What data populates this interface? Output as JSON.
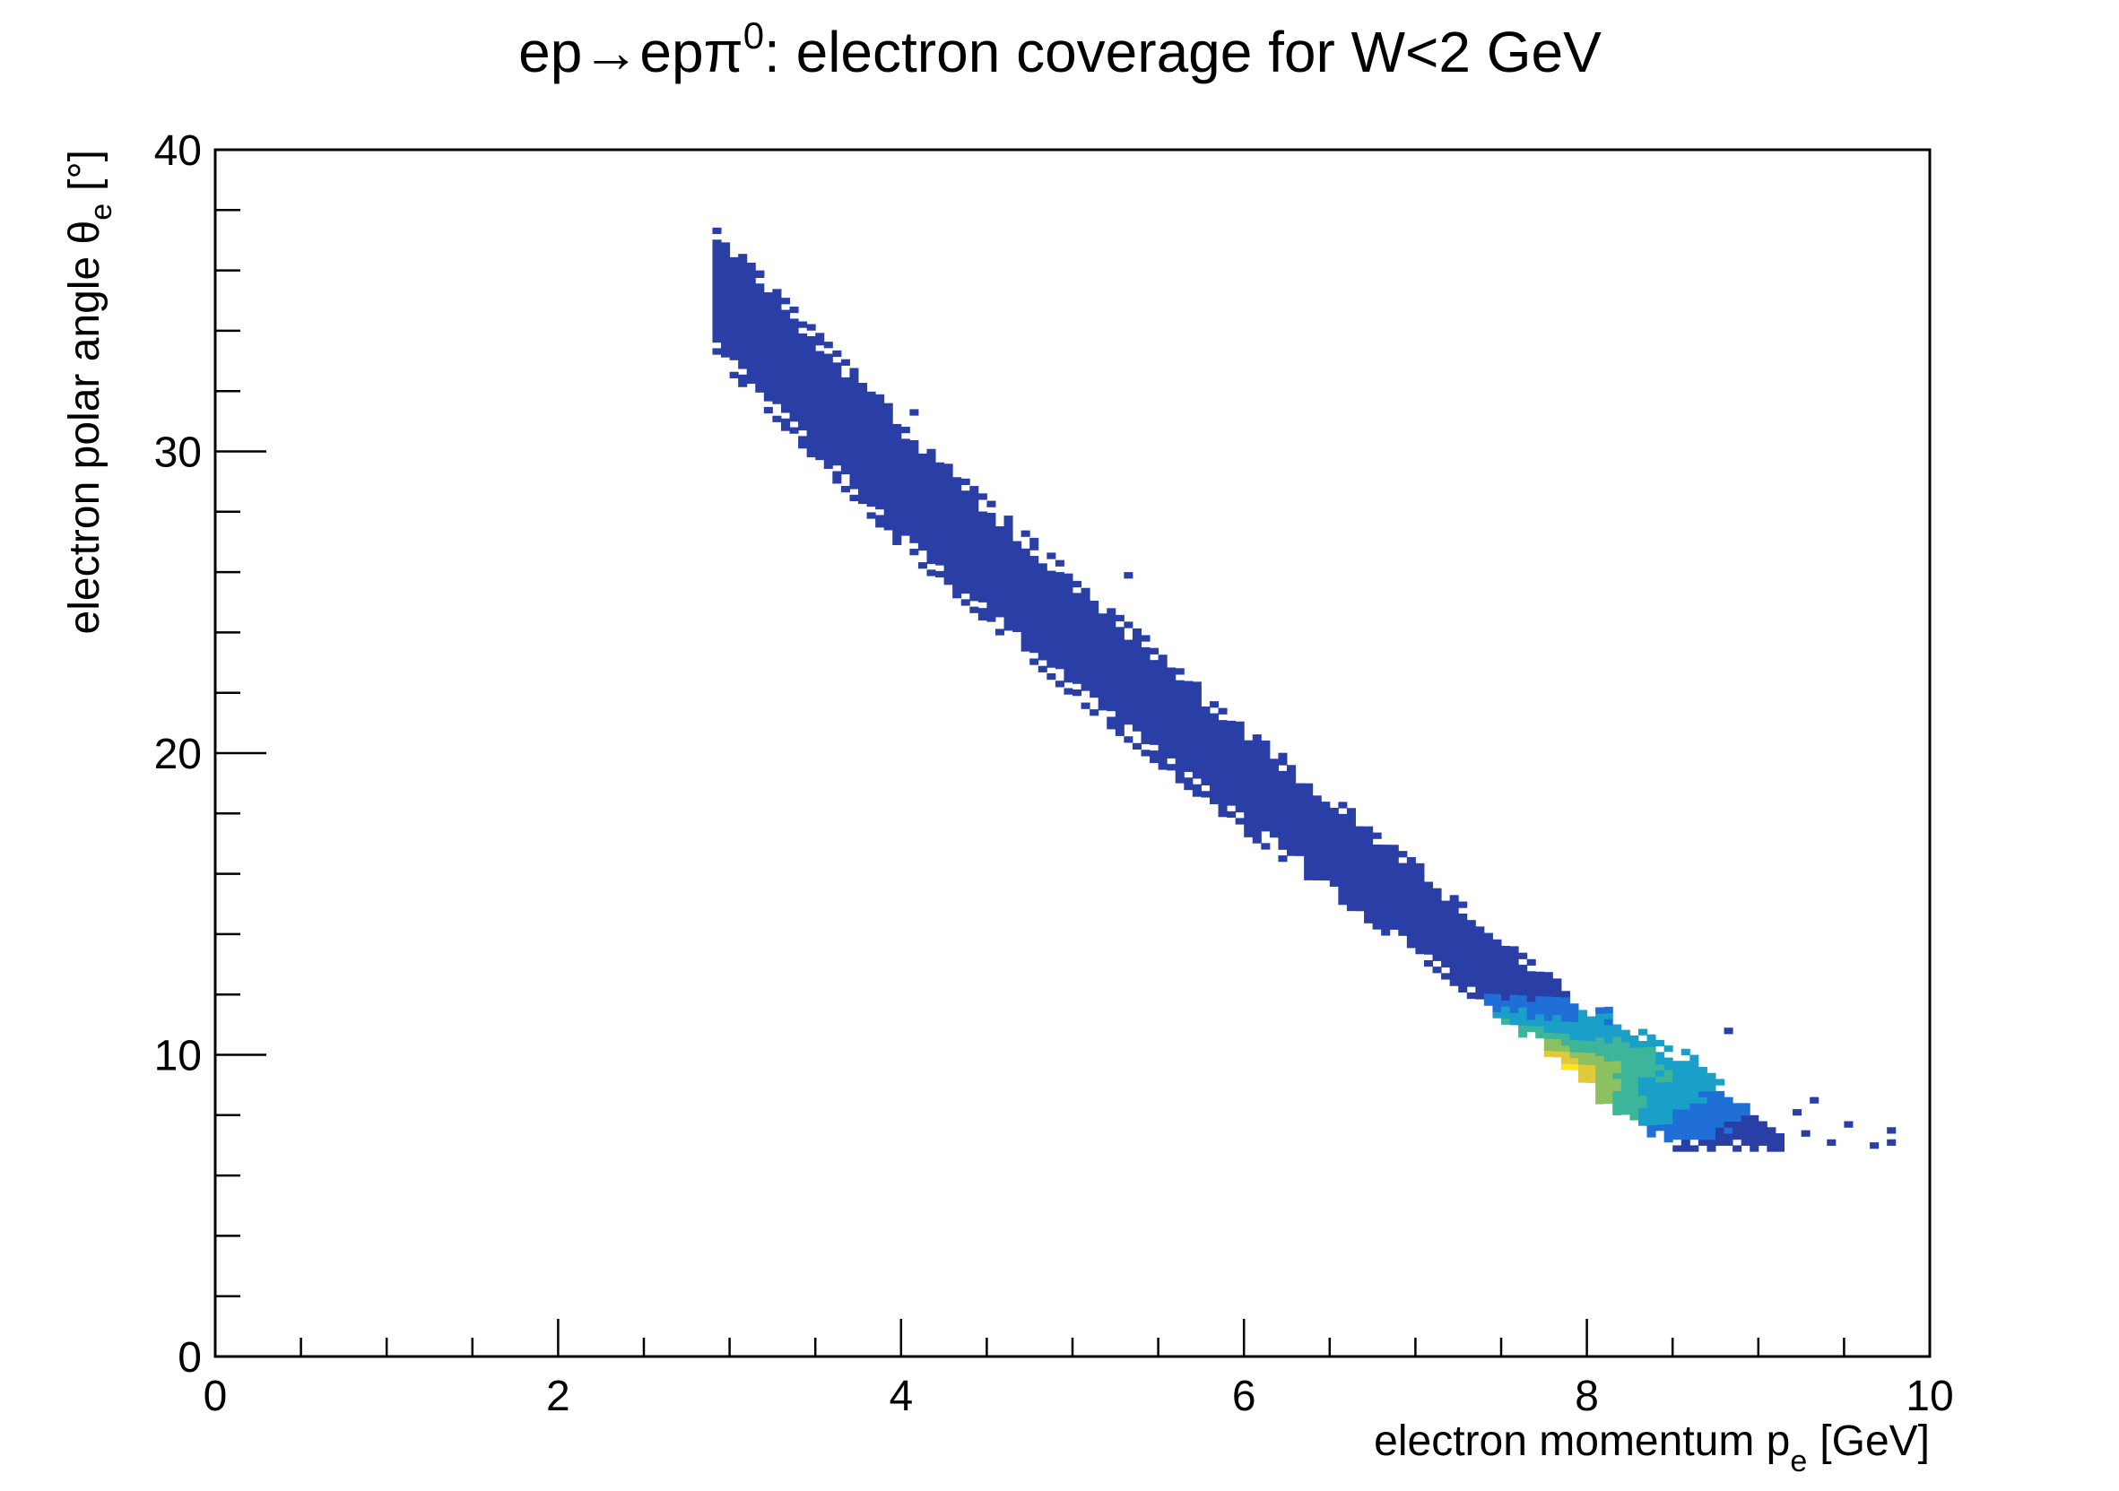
{
  "chart_data": {
    "type": "heatmap",
    "title": {
      "prefix": "ep",
      "arrow": "→",
      "mid": "epπ",
      "superscript": "0",
      "suffix": ": electron coverage for W<2 GeV"
    },
    "xlabel": {
      "main": "electron momentum p",
      "subscript": "e",
      "unit": "[GeV]"
    },
    "ylabel": {
      "main": "electron polar angle θ",
      "subscript": "e",
      "unit": "[°]"
    },
    "xlim": [
      0,
      10
    ],
    "ylim": [
      0,
      40
    ],
    "x_ticks": [
      {
        "value": 0,
        "label": "0"
      },
      {
        "value": 2,
        "label": "2"
      },
      {
        "value": 4,
        "label": "4"
      },
      {
        "value": 6,
        "label": "6"
      },
      {
        "value": 8,
        "label": "8"
      },
      {
        "value": 10,
        "label": "10"
      }
    ],
    "y_ticks": [
      {
        "value": 0,
        "label": "0"
      },
      {
        "value": 10,
        "label": "10"
      },
      {
        "value": 20,
        "label": "20"
      },
      {
        "value": 30,
        "label": "30"
      },
      {
        "value": 40,
        "label": "40"
      }
    ],
    "x_minor_step": 0.5,
    "y_minor_step": 2,
    "grid": false,
    "legend": "none",
    "colormap": [
      "#2a3fa5",
      "#1f6fd6",
      "#1aa0c8",
      "#3cb59a",
      "#8cc060",
      "#e0c93a",
      "#fbe523"
    ],
    "band": {
      "x_range": [
        2.9,
        9.7
      ],
      "centerline": [
        [
          2.9,
          35.0
        ],
        [
          4.0,
          28.5
        ],
        [
          5.0,
          23.5
        ],
        [
          6.0,
          18.8
        ],
        [
          7.0,
          14.5
        ],
        [
          8.0,
          10.0
        ],
        [
          8.6,
          7.8
        ]
      ],
      "peak": {
        "x": 8.0,
        "y": 9.5
      },
      "theta_floor": 6.8,
      "x_max_dense": 9.1
    },
    "outliers": [
      [
        5.3,
        25.8
      ],
      [
        8.8,
        10.7
      ],
      [
        9.3,
        8.4
      ],
      [
        9.5,
        7.6
      ],
      [
        9.75,
        7.4
      ],
      [
        9.65,
        6.9
      ],
      [
        9.4,
        7.0
      ],
      [
        9.75,
        7.0
      ],
      [
        3.15,
        35.8
      ],
      [
        4.05,
        31.2
      ],
      [
        9.25,
        7.3
      ],
      [
        9.2,
        8.0
      ]
    ]
  }
}
